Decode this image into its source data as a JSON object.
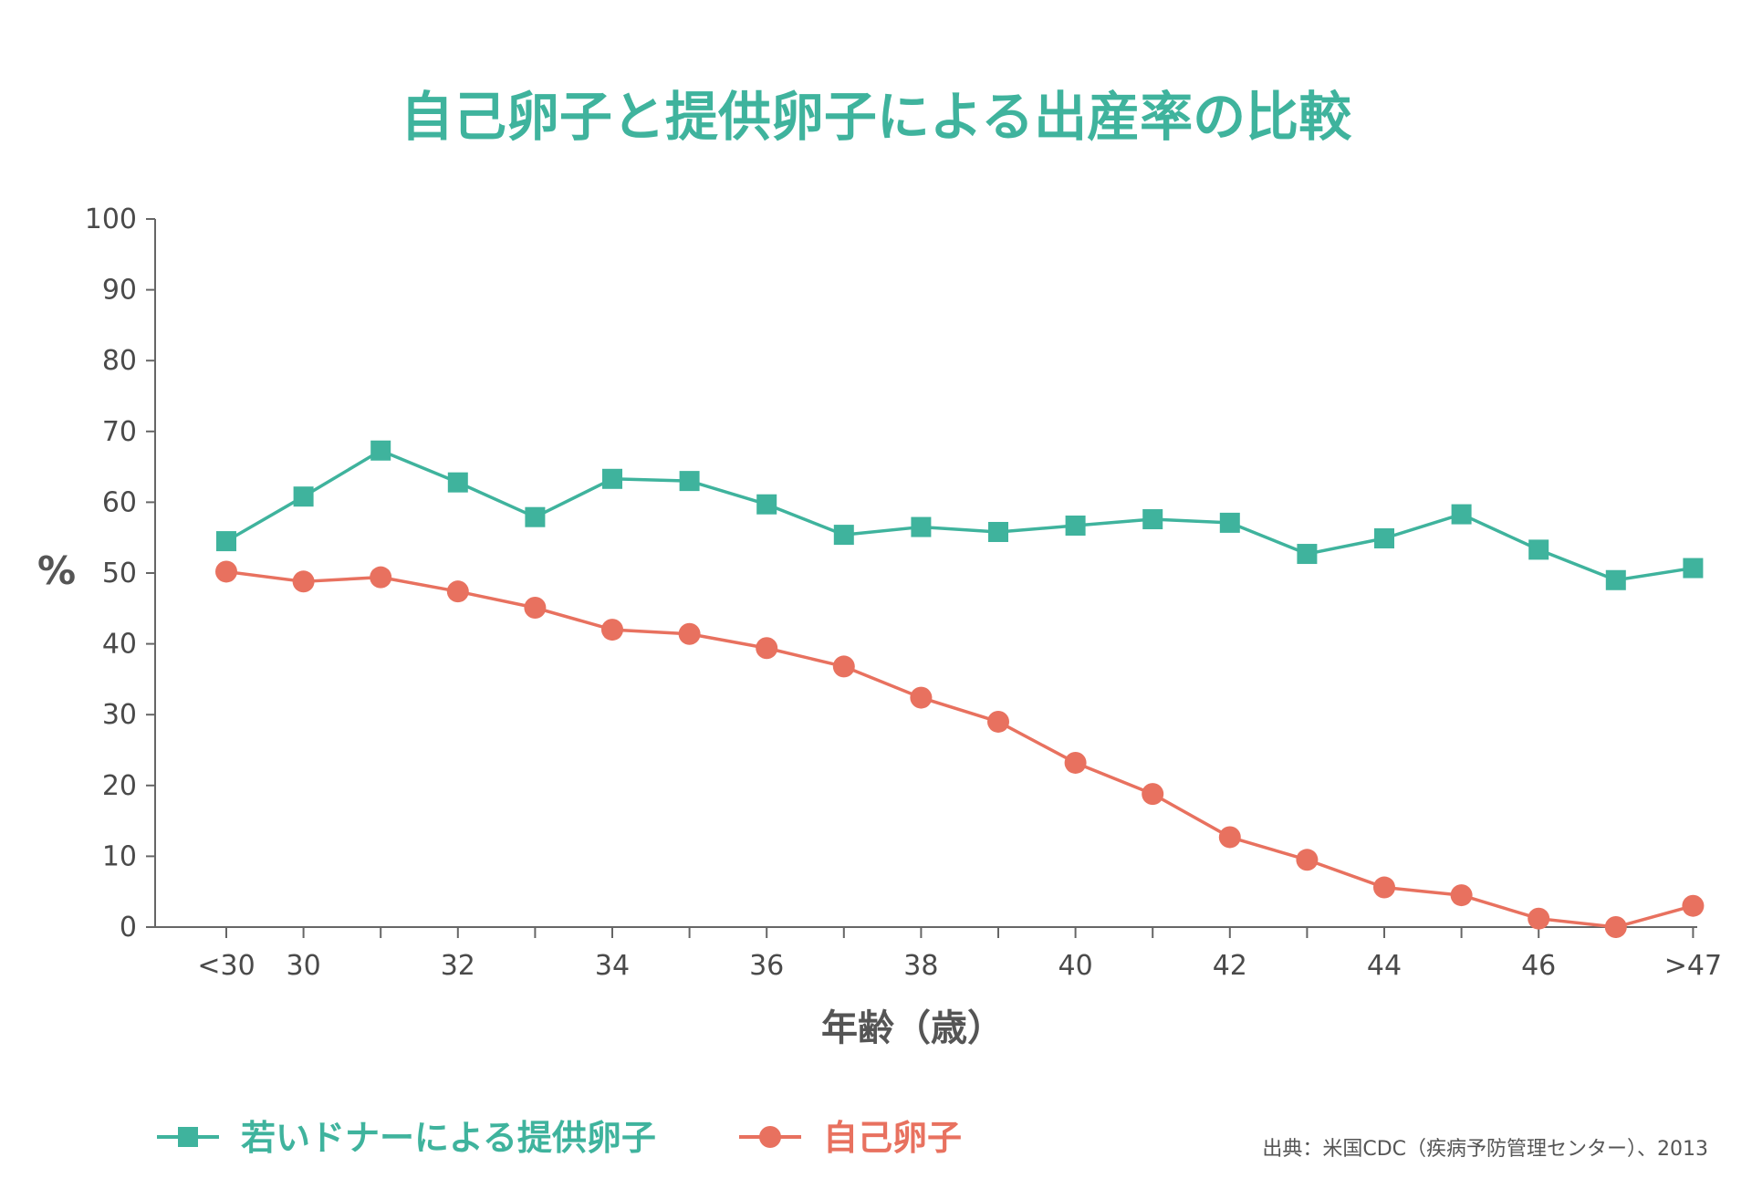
{
  "chart_data": {
    "type": "line",
    "title": "自己卵子と提供卵子による出産率の比較",
    "xlabel": "年齢（歳）",
    "ylabel": "%",
    "categories": [
      "<30",
      "30",
      "31",
      "32",
      "33",
      "34",
      "35",
      "36",
      "37",
      "38",
      "39",
      "40",
      "41",
      "42",
      "43",
      "44",
      "45",
      "46",
      "47",
      ">47"
    ],
    "x_tick_labels": [
      "<30",
      "30",
      "",
      "32",
      "",
      "34",
      "",
      "36",
      "",
      "38",
      "",
      "40",
      "",
      "42",
      "",
      "44",
      "",
      "46",
      "",
      ">47"
    ],
    "y_ticks": [
      0,
      10,
      20,
      30,
      40,
      50,
      60,
      70,
      80,
      90,
      100
    ],
    "ylim": [
      0,
      100
    ],
    "grid": false,
    "legend_position": "bottom-left",
    "series": [
      {
        "name": "若いドナーによる提供卵子",
        "color": "#3fb39d",
        "marker": "square",
        "values": [
          54.5,
          60.8,
          67.3,
          62.8,
          57.9,
          63.3,
          63.0,
          59.7,
          55.4,
          56.5,
          55.8,
          56.7,
          57.6,
          57.1,
          52.7,
          54.9,
          58.3,
          53.3,
          49.0,
          50.7
        ]
      },
      {
        "name": "自己卵子",
        "color": "#e8715f",
        "marker": "circle",
        "values": [
          50.2,
          48.8,
          49.4,
          47.4,
          45.1,
          42.0,
          41.4,
          39.4,
          36.8,
          32.4,
          29.0,
          23.2,
          18.8,
          12.7,
          9.5,
          5.6,
          4.5,
          1.2,
          0.0,
          3.0
        ]
      }
    ],
    "source": "出典：米国CDC（疾病予防管理センター）、2013"
  }
}
